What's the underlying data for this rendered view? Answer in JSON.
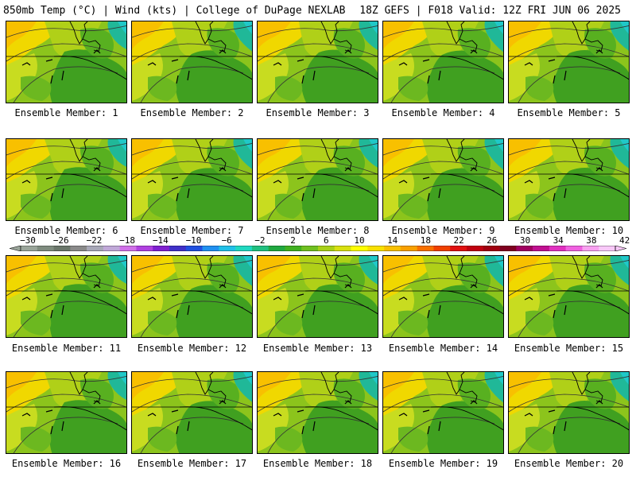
{
  "header": {
    "left": "850mb Temp (°C) | Wind (kts) | College of DuPage NEXLAB",
    "right": "18Z GEFS | F018 Valid: 12Z FRI JUN 06 2025"
  },
  "panels": [
    {
      "label": "Ensemble Member: 1"
    },
    {
      "label": "Ensemble Member: 2"
    },
    {
      "label": "Ensemble Member: 3"
    },
    {
      "label": "Ensemble Member: 4"
    },
    {
      "label": "Ensemble Member: 5"
    },
    {
      "label": "Ensemble Member: 6"
    },
    {
      "label": "Ensemble Member: 7"
    },
    {
      "label": "Ensemble Member: 8"
    },
    {
      "label": "Ensemble Member: 9"
    },
    {
      "label": "Ensemble Member: 10"
    },
    {
      "label": "Ensemble Member: 11"
    },
    {
      "label": "Ensemble Member: 12"
    },
    {
      "label": "Ensemble Member: 13"
    },
    {
      "label": "Ensemble Member: 14"
    },
    {
      "label": "Ensemble Member: 15"
    },
    {
      "label": "Ensemble Member: 16"
    },
    {
      "label": "Ensemble Member: 17"
    },
    {
      "label": "Ensemble Member: 18"
    },
    {
      "label": "Ensemble Member: 19"
    },
    {
      "label": "Ensemble Member: 20"
    }
  ],
  "colorbar": {
    "labels": [
      "−30",
      "−26",
      "−22",
      "−18",
      "−14",
      "−10",
      "−6",
      "−2",
      "2",
      "6",
      "10",
      "14",
      "18",
      "22",
      "26",
      "30",
      "34",
      "38",
      "42"
    ],
    "colors": [
      "#9aa59a",
      "#7f8c7f",
      "#6a766a",
      "#8a8a8a",
      "#a8a8b8",
      "#c0a8d8",
      "#d070e8",
      "#b040e0",
      "#8020d0",
      "#4030c8",
      "#2050e0",
      "#2090f0",
      "#20c0e8",
      "#20d8c0",
      "#20c080",
      "#20a840",
      "#40b020",
      "#70c020",
      "#a8d018",
      "#d8e010",
      "#ffff00",
      "#f8e000",
      "#f8c000",
      "#f8a000",
      "#f87000",
      "#f04000",
      "#e01010",
      "#c00010",
      "#a00010",
      "#800020",
      "#a00060",
      "#c01090",
      "#e030c0",
      "#f060e0",
      "#f8a0f0",
      "#f8c8f8"
    ]
  }
}
